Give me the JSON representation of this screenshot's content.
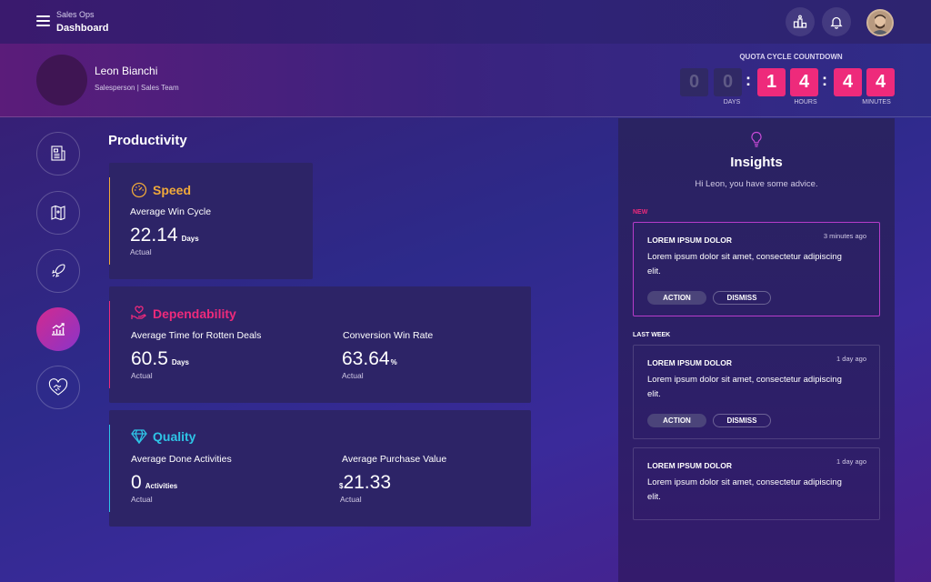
{
  "header": {
    "app_name": "Sales Ops",
    "page_title": "Dashboard",
    "icons": [
      "menu-icon",
      "leaderboard-icon",
      "bell-icon",
      "user-avatar"
    ]
  },
  "profile": {
    "name": "Leon Bianchi",
    "role": "Salesperson | Sales Team"
  },
  "countdown": {
    "title": "QUOTA CYCLE COUNTDOWN",
    "days": [
      "0",
      "0"
    ],
    "hours": [
      "1",
      "4"
    ],
    "minutes": [
      "4",
      "4"
    ],
    "days_label": "DAYS",
    "hours_label": "HOURS",
    "minutes_label": "MINUTES",
    "separator": ":",
    "active_color": "#ee2a7b"
  },
  "sidebar": {
    "items": [
      {
        "icon": "report-icon"
      },
      {
        "icon": "map-icon"
      },
      {
        "icon": "rocket-icon"
      },
      {
        "icon": "chart-icon",
        "active": true
      },
      {
        "icon": "handshake-heart-icon"
      }
    ]
  },
  "productivity": {
    "title": "Productivity",
    "speed": {
      "title": "Speed",
      "color": "#f0a93a",
      "metric_label": "Average Win Cycle",
      "value": "22.14",
      "unit": "Days",
      "sub": "Actual"
    },
    "dependability": {
      "title": "Dependability",
      "color": "#ee2a7b",
      "metric1_label": "Average Time for Rotten Deals",
      "metric1_value": "60.5",
      "metric1_unit": "Days",
      "metric1_sub": "Actual",
      "metric2_label": "Conversion Win Rate",
      "metric2_value": "63.64",
      "metric2_unit": "%",
      "metric2_sub": "Actual"
    },
    "quality": {
      "title": "Quality",
      "color": "#2ec4e6",
      "metric1_label": "Average Done Activities",
      "metric1_value": "0",
      "metric1_unit": "Activities",
      "metric1_sub": "Actual",
      "metric2_label": "Average Purchase Value",
      "metric2_prefix": "$",
      "metric2_value": "21.33",
      "metric2_sub": "Actual"
    }
  },
  "insights": {
    "title": "Insights",
    "subtitle": "Hi Leon, you have some advice.",
    "new_label": "NEW",
    "last_week_label": "LAST WEEK",
    "notes": [
      {
        "title": "LOREM IPSUM DOLOR",
        "time": "3 minutes ago",
        "body": "Lorem ipsum dolor sit amet, consectetur adipiscing elit.",
        "action_label": "ACTION",
        "dismiss_label": "DISMISS"
      },
      {
        "title": "LOREM IPSUM DOLOR",
        "time": "1 day ago",
        "body": "Lorem ipsum dolor sit amet, consectetur adipiscing elit.",
        "action_label": "ACTION",
        "dismiss_label": "DISMISS"
      },
      {
        "title": "LOREM IPSUM DOLOR",
        "time": "1 day ago",
        "body": "Lorem ipsum dolor sit amet, consectetur adipiscing elit."
      }
    ]
  }
}
